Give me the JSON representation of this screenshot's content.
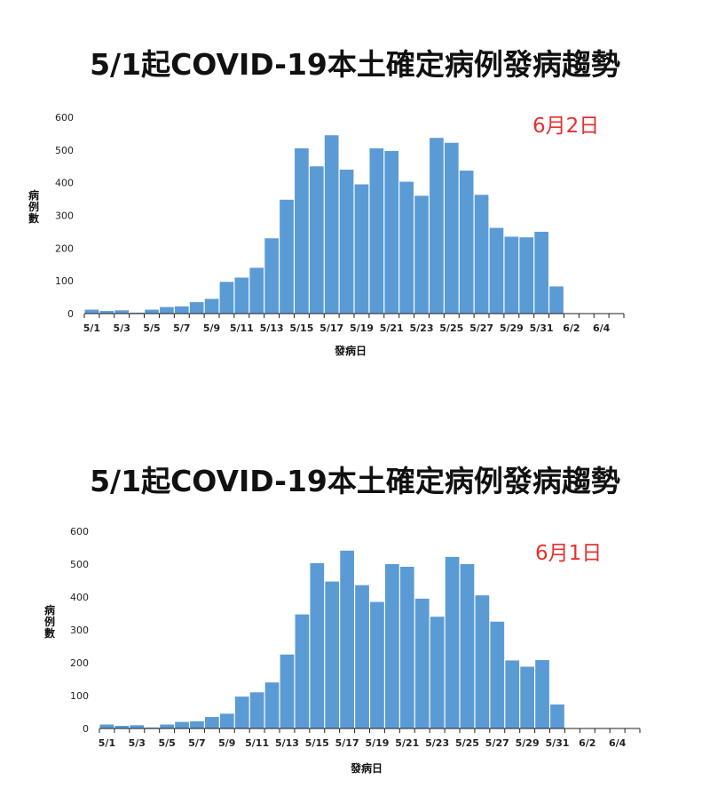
{
  "chart_data": [
    {
      "type": "bar",
      "title": "5/1起COVID-19本土確定病例發病趨勢",
      "date_label": "6月2日",
      "xlabel": "發病日",
      "ylabel": "病例數",
      "ylim": [
        0,
        600
      ],
      "yticks": [
        0,
        100,
        200,
        300,
        400,
        500,
        600
      ],
      "xticks": [
        "5/1",
        "5/3",
        "5/5",
        "5/7",
        "5/9",
        "5/11",
        "5/13",
        "5/15",
        "5/17",
        "5/19",
        "5/21",
        "5/23",
        "5/25",
        "5/27",
        "5/29",
        "5/31",
        "6/2",
        "6/4"
      ],
      "categories": [
        "5/1",
        "5/2",
        "5/3",
        "5/4",
        "5/5",
        "5/6",
        "5/7",
        "5/8",
        "5/9",
        "5/10",
        "5/11",
        "5/12",
        "5/13",
        "5/14",
        "5/15",
        "5/16",
        "5/17",
        "5/18",
        "5/19",
        "5/20",
        "5/21",
        "5/22",
        "5/23",
        "5/24",
        "5/25",
        "5/26",
        "5/27",
        "5/28",
        "5/29",
        "5/30",
        "5/31",
        "6/1",
        "6/2",
        "6/3",
        "6/4",
        "6/5"
      ],
      "values": [
        12,
        8,
        10,
        3,
        12,
        20,
        22,
        35,
        45,
        97,
        110,
        140,
        230,
        348,
        505,
        450,
        545,
        440,
        395,
        505,
        497,
        403,
        360,
        537,
        522,
        437,
        363,
        262,
        235,
        233,
        250,
        83,
        0,
        0,
        0,
        0
      ],
      "color": "#5b9bd5"
    },
    {
      "type": "bar",
      "title": "5/1起COVID-19本土確定病例發病趨勢",
      "date_label": "6月1日",
      "xlabel": "發病日",
      "ylabel": "病例數",
      "ylim": [
        0,
        600
      ],
      "yticks": [
        0,
        100,
        200,
        300,
        400,
        500,
        600
      ],
      "xticks": [
        "5/1",
        "5/3",
        "5/5",
        "5/7",
        "5/9",
        "5/11",
        "5/13",
        "5/15",
        "5/17",
        "5/19",
        "5/21",
        "5/23",
        "5/25",
        "5/27",
        "5/29",
        "5/31",
        "6/2",
        "6/4"
      ],
      "categories": [
        "5/1",
        "5/2",
        "5/3",
        "5/4",
        "5/5",
        "5/6",
        "5/7",
        "5/8",
        "5/9",
        "5/10",
        "5/11",
        "5/12",
        "5/13",
        "5/14",
        "5/15",
        "5/16",
        "5/17",
        "5/18",
        "5/19",
        "5/20",
        "5/21",
        "5/22",
        "5/23",
        "5/24",
        "5/25",
        "5/26",
        "5/27",
        "5/28",
        "5/29",
        "5/30",
        "5/31",
        "6/1",
        "6/2",
        "6/3",
        "6/4",
        "6/5"
      ],
      "values": [
        12,
        8,
        10,
        3,
        12,
        20,
        22,
        35,
        45,
        97,
        110,
        140,
        225,
        347,
        503,
        447,
        541,
        436,
        385,
        500,
        492,
        395,
        340,
        522,
        500,
        405,
        325,
        207,
        188,
        208,
        73,
        0,
        0,
        0,
        0,
        0
      ],
      "color": "#5b9bd5"
    }
  ]
}
